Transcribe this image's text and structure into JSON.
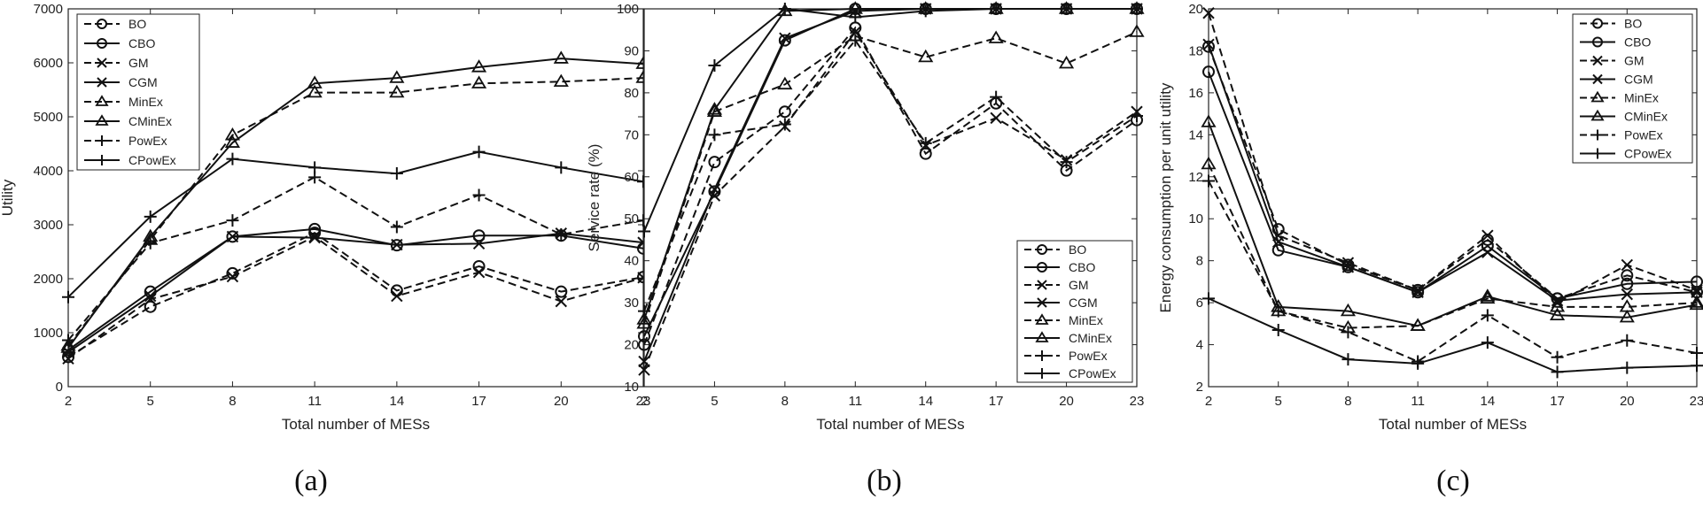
{
  "chart_data": [
    {
      "type": "line",
      "panel_label": "(a)",
      "title": "",
      "xlabel": "Total number of MESs",
      "ylabel": "Utility",
      "x": [
        2,
        5,
        8,
        11,
        14,
        17,
        20,
        23
      ],
      "xticks": [
        "2",
        "5",
        "8",
        "11",
        "14",
        "17",
        "20",
        "23"
      ],
      "xlim": [
        2,
        23
      ],
      "ylim": [
        0,
        7000
      ],
      "yticks": [
        "0",
        "1000",
        "2000",
        "3000",
        "4000",
        "5000",
        "6000",
        "7000"
      ],
      "legend_position": "top-left",
      "series": [
        {
          "name": "BO",
          "dashed": true,
          "marker": "circle",
          "values": [
            550,
            1480,
            2100,
            2850,
            1780,
            2230,
            1760,
            2030
          ]
        },
        {
          "name": "CBO",
          "dashed": false,
          "marker": "circle",
          "values": [
            680,
            1760,
            2780,
            2920,
            2620,
            2800,
            2800,
            2560
          ]
        },
        {
          "name": "GM",
          "dashed": true,
          "marker": "x",
          "values": [
            520,
            1620,
            2040,
            2780,
            1680,
            2120,
            1580,
            2020
          ]
        },
        {
          "name": "CGM",
          "dashed": false,
          "marker": "x",
          "values": [
            640,
            1680,
            2780,
            2760,
            2630,
            2650,
            2840,
            2670
          ]
        },
        {
          "name": "MinEx",
          "dashed": true,
          "marker": "triangle",
          "values": [
            760,
            2720,
            4660,
            5450,
            5450,
            5620,
            5650,
            5720
          ]
        },
        {
          "name": "CMinEx",
          "dashed": false,
          "marker": "triangle",
          "values": [
            720,
            2780,
            4520,
            5620,
            5720,
            5920,
            6080,
            5980
          ]
        },
        {
          "name": "PowEx",
          "dashed": true,
          "marker": "plus",
          "values": [
            860,
            2660,
            3080,
            3880,
            2960,
            3550,
            2820,
            3080
          ]
        },
        {
          "name": "CPowEx",
          "dashed": false,
          "marker": "plus",
          "values": [
            1660,
            3150,
            4220,
            4060,
            3950,
            4350,
            4060,
            3800
          ]
        }
      ]
    },
    {
      "type": "line",
      "panel_label": "(b)",
      "title": "",
      "xlabel": "Total number of MESs",
      "ylabel": "Service rate (%)",
      "x": [
        2,
        5,
        8,
        11,
        14,
        17,
        20,
        23
      ],
      "xticks": [
        "2",
        "5",
        "8",
        "11",
        "14",
        "17",
        "20",
        "23"
      ],
      "xlim": [
        2,
        23
      ],
      "ylim": [
        10,
        100
      ],
      "yticks": [
        "10",
        "20",
        "30",
        "40",
        "50",
        "60",
        "70",
        "80",
        "90",
        "100"
      ],
      "legend_position": "bottom-right",
      "series": [
        {
          "name": "BO",
          "dashed": true,
          "marker": "circle",
          "values": [
            20,
            63.5,
            75.5,
            95.5,
            65.5,
            77.5,
            61.5,
            73.5
          ]
        },
        {
          "name": "CBO",
          "dashed": false,
          "marker": "circle",
          "values": [
            22,
            56.5,
            92.5,
            100,
            100,
            100,
            100,
            100
          ]
        },
        {
          "name": "GM",
          "dashed": true,
          "marker": "x",
          "values": [
            14,
            55.5,
            72,
            94.5,
            67.5,
            74,
            64,
            75.5
          ]
        },
        {
          "name": "CGM",
          "dashed": false,
          "marker": "x",
          "values": [
            16,
            57,
            93,
            99.5,
            100,
            100,
            100,
            100
          ]
        },
        {
          "name": "MinEx",
          "dashed": true,
          "marker": "triangle",
          "values": [
            25,
            75.5,
            82,
            93.5,
            88.5,
            93,
            87,
            94.5
          ]
        },
        {
          "name": "CMinEx",
          "dashed": false,
          "marker": "triangle",
          "values": [
            26,
            76,
            99.5,
            100,
            100,
            100,
            100,
            100
          ]
        },
        {
          "name": "PowEx",
          "dashed": true,
          "marker": "plus",
          "values": [
            28,
            70,
            72.5,
            92.5,
            68,
            79,
            63.5,
            74.5
          ]
        },
        {
          "name": "CPowEx",
          "dashed": false,
          "marker": "plus",
          "values": [
            47,
            86.5,
            100,
            98,
            99.5,
            100,
            100,
            100
          ]
        }
      ]
    },
    {
      "type": "line",
      "panel_label": "(c)",
      "title": "",
      "xlabel": "Total number of MESs",
      "ylabel": "Energy consumption per unit utility",
      "x": [
        2,
        5,
        8,
        11,
        14,
        17,
        20,
        23
      ],
      "xticks": [
        "2",
        "5",
        "8",
        "11",
        "14",
        "17",
        "20",
        "23"
      ],
      "xlim": [
        2,
        23
      ],
      "ylim": [
        2,
        20
      ],
      "yticks": [
        "2",
        "4",
        "6",
        "8",
        "10",
        "12",
        "14",
        "16",
        "18",
        "20"
      ],
      "legend_position": "top-right",
      "series": [
        {
          "name": "BO",
          "dashed": true,
          "marker": "circle",
          "values": [
            18.2,
            9.5,
            7.8,
            6.6,
            9.0,
            6.2,
            7.3,
            6.5
          ]
        },
        {
          "name": "CBO",
          "dashed": false,
          "marker": "circle",
          "values": [
            17.0,
            8.5,
            7.7,
            6.5,
            8.7,
            6.2,
            6.9,
            7.0
          ]
        },
        {
          "name": "GM",
          "dashed": true,
          "marker": "x",
          "values": [
            19.8,
            9.2,
            7.9,
            6.6,
            9.2,
            6.0,
            7.8,
            6.6
          ]
        },
        {
          "name": "CGM",
          "dashed": false,
          "marker": "x",
          "values": [
            18.3,
            8.9,
            7.7,
            6.5,
            8.4,
            6.1,
            6.4,
            6.5
          ]
        },
        {
          "name": "MinEx",
          "dashed": true,
          "marker": "triangle",
          "values": [
            12.6,
            5.6,
            4.8,
            4.9,
            6.2,
            5.8,
            5.8,
            6.0
          ]
        },
        {
          "name": "CMinEx",
          "dashed": false,
          "marker": "triangle",
          "values": [
            14.6,
            5.8,
            5.6,
            4.9,
            6.3,
            5.4,
            5.3,
            5.9
          ]
        },
        {
          "name": "PowEx",
          "dashed": true,
          "marker": "plus",
          "values": [
            11.8,
            5.6,
            4.6,
            3.2,
            5.4,
            3.4,
            4.2,
            3.6
          ]
        },
        {
          "name": "CPowEx",
          "dashed": false,
          "marker": "plus",
          "values": [
            6.2,
            4.7,
            3.3,
            3.1,
            4.1,
            2.7,
            2.9,
            3.0
          ]
        }
      ]
    }
  ]
}
